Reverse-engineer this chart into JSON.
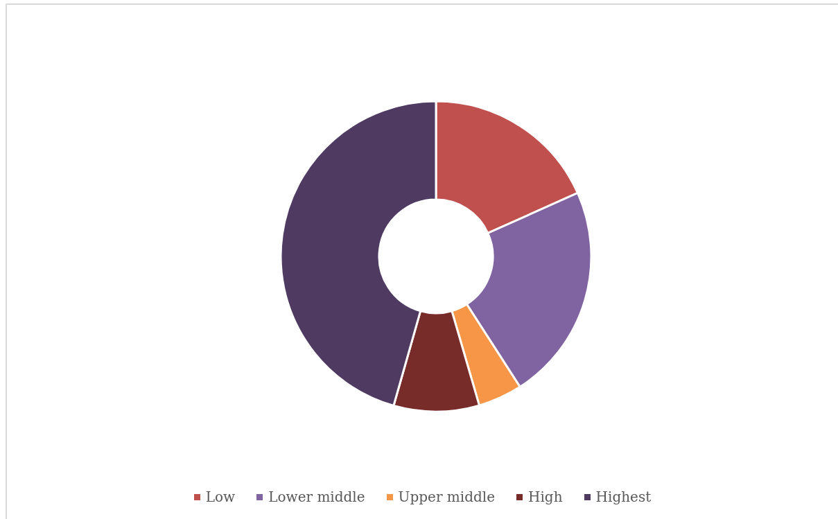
{
  "chart_data": {
    "type": "donut",
    "categories": [
      "Low",
      "Lower middle",
      "Upper middle",
      "High",
      "Highest"
    ],
    "values": [
      18.3,
      22.6,
      4.6,
      8.9,
      45.6
    ],
    "colors": [
      "#c0504d",
      "#8064a2",
      "#f79646",
      "#772c2a",
      "#4f3a62"
    ],
    "legend": "bottom"
  }
}
